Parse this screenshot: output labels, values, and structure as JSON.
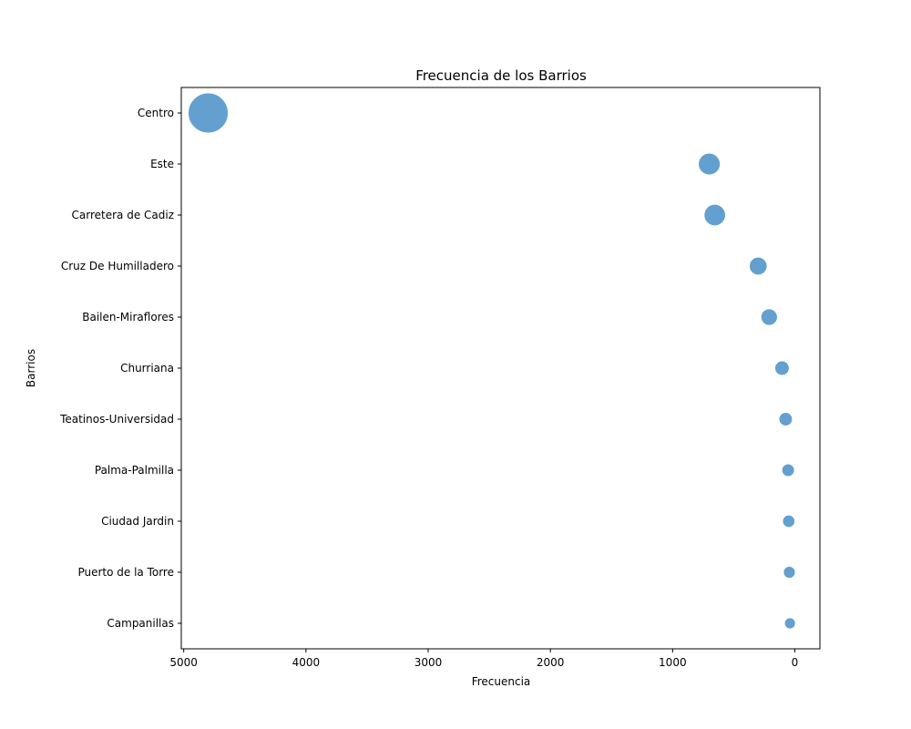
{
  "chart_data": {
    "type": "scatter",
    "title": "Frecuencia de los Barrios",
    "xlabel": "Frecuencia",
    "ylabel": "Barrios",
    "x_axis_inverted": true,
    "xlim": [
      5020,
      -205
    ],
    "xticks": [
      5000,
      4000,
      3000,
      2000,
      1000,
      0
    ],
    "xtick_labels": [
      "5000",
      "4000",
      "3000",
      "2000",
      "1000",
      "0"
    ],
    "categories": [
      "Centro",
      "Este",
      "Carretera de Cadiz",
      "Cruz De Humilladero",
      "Bailen-Miraflores",
      "Churriana",
      "Teatinos-Universidad",
      "Palma-Palmilla",
      "Ciudad Jardin",
      "Puerto de la Torre",
      "Campanillas"
    ],
    "values": [
      4800,
      700,
      655,
      300,
      210,
      105,
      75,
      55,
      50,
      45,
      40
    ],
    "marker_size_encodes": "Frecuencia",
    "grid": false,
    "legend": "none",
    "color": "#5b9bcc",
    "opacity": 0.95
  }
}
